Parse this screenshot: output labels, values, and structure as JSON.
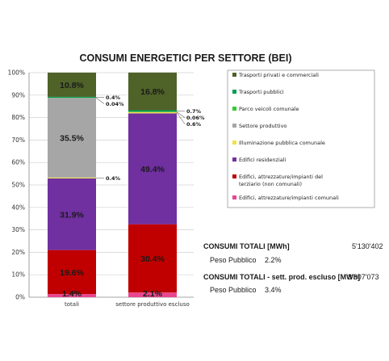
{
  "chart_data": {
    "type": "bar",
    "stacked": true,
    "title": "CONSUMI ENERGETICI PER SETTORE (BEI)",
    "categories": [
      "totali",
      "settore produttivo escluso"
    ],
    "y_ticks": [
      "0%",
      "10%",
      "20%",
      "30%",
      "40%",
      "50%",
      "60%",
      "70%",
      "80%",
      "90%",
      "100%"
    ],
    "ylim": [
      0,
      100
    ],
    "grid": true,
    "legend_position": "right",
    "series": [
      {
        "name": "Edifici, attrezzature/impianti comunali",
        "color": "#e8478f",
        "values": [
          1.4,
          2.1
        ],
        "labels": [
          "1.4%",
          "2.1%"
        ]
      },
      {
        "name": "Edifici, attrezzature/impianti del terziario (non comunali)",
        "color": "#c00000",
        "values": [
          19.6,
          30.4
        ],
        "labels": [
          "19.6%",
          "30.4%"
        ]
      },
      {
        "name": "Edifici residenziali",
        "color": "#7030a0",
        "values": [
          31.9,
          49.4
        ],
        "labels": [
          "31.9%",
          "49.4%"
        ]
      },
      {
        "name": "Illuminazione pubblica comunale",
        "color": "#f2e04a",
        "values": [
          0.4,
          0.6
        ],
        "labels": [
          "0.4%",
          "0.6%"
        ]
      },
      {
        "name": "Settore produttivo",
        "color": "#a6a6a6",
        "values": [
          35.5,
          0
        ],
        "labels": [
          "35.5%",
          ""
        ]
      },
      {
        "name": "Parco veicoli comunale",
        "color": "#33cc33",
        "values": [
          0.04,
          0.06
        ],
        "labels": [
          "0.04%",
          "0.06%"
        ]
      },
      {
        "name": "Trasporti pubblici",
        "color": "#00a050",
        "values": [
          0.4,
          0.7
        ],
        "labels": [
          "0.4%",
          "0.7%"
        ]
      },
      {
        "name": "Trasporti privati e commerciali",
        "color": "#4f6228",
        "values": [
          10.8,
          16.8
        ],
        "labels": [
          "10.8%",
          "16.8%"
        ]
      }
    ],
    "legend_order": [
      "Trasporti privati e commerciali",
      "Trasporti pubblici",
      "Parco veicoli comunale",
      "Settore produttivo",
      "Illuminazione pubblica comunale",
      "Edifici residenziali",
      "Edifici, attrezzature/impianti del terziario (non comunali)",
      "Edifici, attrezzature/impianti comunali"
    ]
  },
  "totals": {
    "consumi_totali_label": "CONSUMI TOTALI [MWh]",
    "consumi_totali_value": "5'130'402",
    "peso_pubblico_label_1": "Peso Pubblico",
    "peso_pubblico_value_1": "2.2%",
    "consumi_sett_label": "CONSUMI TOTALI - sett. prod. escluso [MWh]",
    "consumi_sett_value": "3'307'073",
    "peso_pubblico_label_2": "Peso Pubblico",
    "peso_pubblico_value_2": "3.4%"
  }
}
